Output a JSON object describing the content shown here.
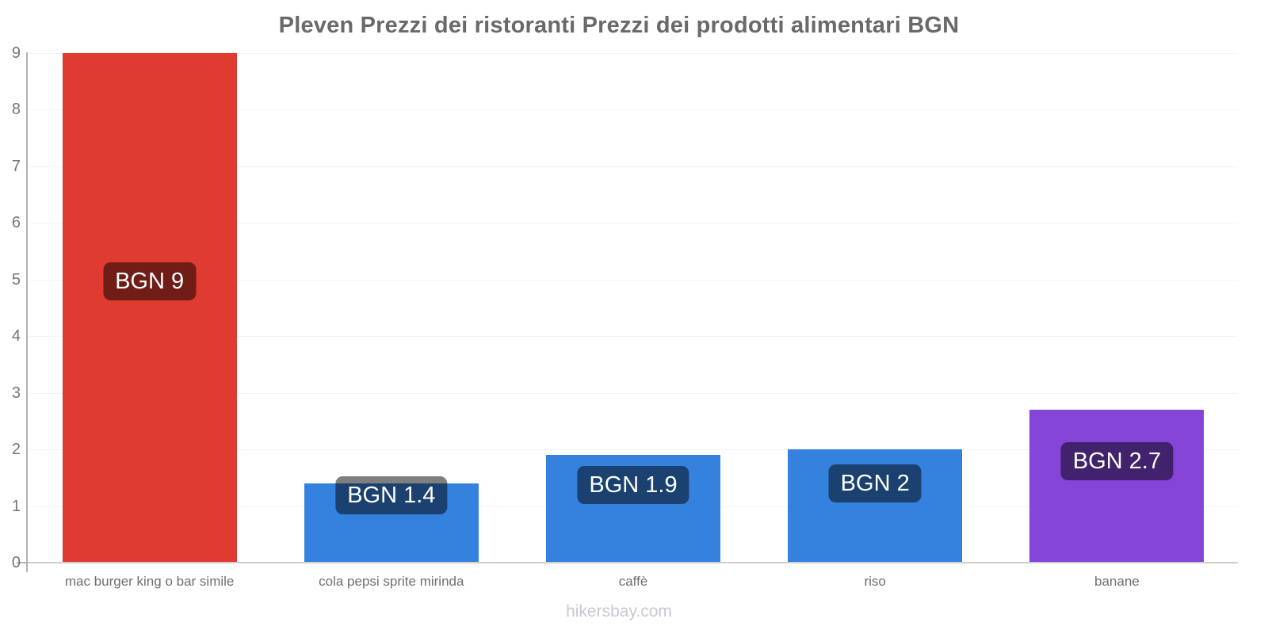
{
  "page": {
    "title": "Pleven Prezzi dei ristoranti Prezzi dei prodotti alimentari BGN",
    "footer": "hikersbay.com"
  },
  "chart_data": {
    "type": "bar",
    "title": "Pleven Prezzi dei ristoranti Prezzi dei prodotti alimentari BGN",
    "categories": [
      "mac burger king o bar simile",
      "cola pepsi sprite mirinda",
      "caffè",
      "riso",
      "banane"
    ],
    "values": [
      9,
      1.4,
      1.9,
      2,
      2.7
    ],
    "value_labels": [
      "BGN 9",
      "BGN 1.4",
      "BGN 1.9",
      "BGN 2",
      "BGN 2.7"
    ],
    "bar_colors": [
      "#e03b30",
      "#3482de",
      "#3482de",
      "#3482de",
      "#8445d8"
    ],
    "currency": "BGN",
    "xlabel": "",
    "ylabel": "",
    "ylim": [
      0,
      9
    ],
    "yticks": [
      0,
      1,
      2,
      3,
      4,
      5,
      6,
      7,
      8,
      9
    ],
    "grid": true,
    "legend": "none",
    "label_badge_bg": "rgba(0,0,0,0.5)",
    "label_text_color": "#ffffff",
    "footer_watermark": "hikersbay.com"
  },
  "colors": {
    "title": "#696969",
    "axis_labels": "#757575",
    "category_labels": "#6f6f6f",
    "footer": "#c8c8d2",
    "axis_line": "#b1b1b6",
    "baseline": "#cfcfcf",
    "gridline": "#f4f4f4",
    "background": "#ffffff"
  }
}
